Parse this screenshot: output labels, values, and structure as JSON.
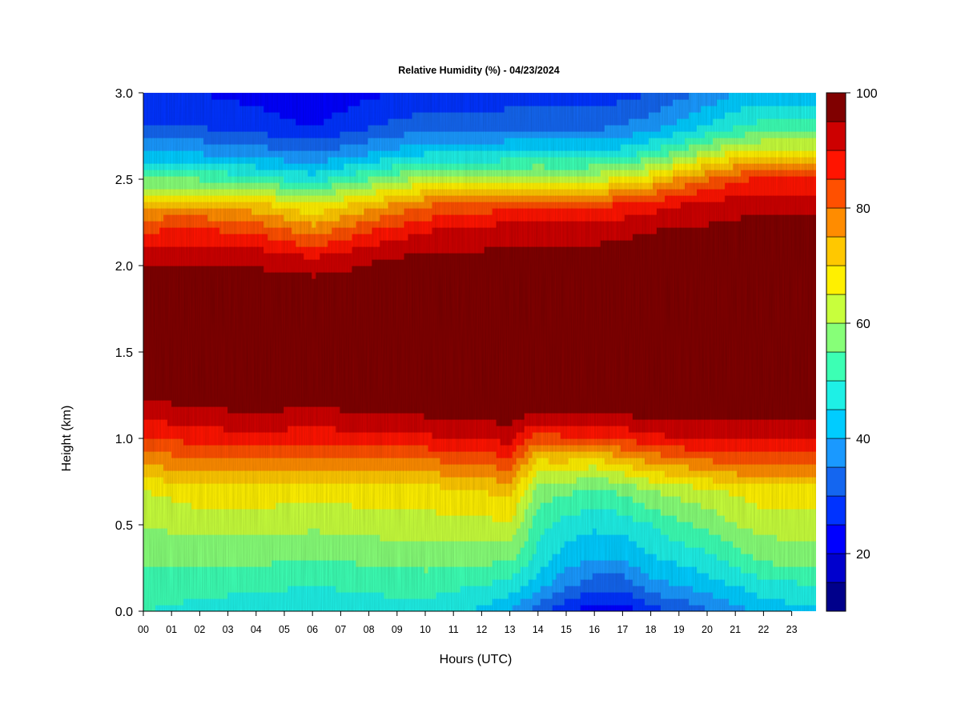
{
  "chart_data": {
    "type": "heatmap",
    "title": "Relative Humidity (%) - 04/23/2024",
    "xlabel": "Hours (UTC)",
    "ylabel": "Height (km)",
    "x_ticks": [
      "00",
      "01",
      "02",
      "03",
      "04",
      "05",
      "06",
      "07",
      "08",
      "09",
      "10",
      "11",
      "12",
      "13",
      "14",
      "15",
      "16",
      "17",
      "18",
      "19",
      "20",
      "21",
      "22",
      "23"
    ],
    "y_ticks": [
      "0.0",
      "0.5",
      "1.0",
      "1.5",
      "2.0",
      "2.5",
      "3.0"
    ],
    "xlim": [
      0,
      23.9
    ],
    "ylim": [
      0,
      3.0
    ],
    "colorbar": {
      "ticks": [
        "20",
        "40",
        "60",
        "80",
        "100"
      ],
      "range": [
        10,
        100
      ],
      "levels": [
        10,
        15,
        20,
        25,
        30,
        35,
        40,
        45,
        50,
        55,
        60,
        65,
        70,
        75,
        80,
        85,
        90,
        95,
        100
      ],
      "colors": [
        "#00008b",
        "#0000cd",
        "#0000ff",
        "#0033ff",
        "#1466f0",
        "#1a99ff",
        "#00ccff",
        "#1ef0e6",
        "#3cffb4",
        "#87ff78",
        "#c8ff3c",
        "#fff000",
        "#ffc800",
        "#ff8c00",
        "#ff5000",
        "#ff1400",
        "#cd0000",
        "#800000"
      ]
    },
    "profile_heights_km": [
      0.0,
      0.15,
      0.3,
      0.5,
      0.7,
      0.85,
      1.0,
      1.15,
      1.3,
      1.5,
      1.7,
      1.9,
      2.05,
      2.2,
      2.35,
      2.5,
      2.65,
      2.8,
      3.0
    ],
    "profiles": [
      {
        "hour": 0,
        "rh": [
          50,
          53,
          56,
          60,
          65,
          75,
          84,
          92,
          98,
          100,
          100,
          98,
          94,
          85,
          75,
          55,
          40,
          30,
          25
        ]
      },
      {
        "hour": 2,
        "rh": [
          48,
          52,
          56,
          62,
          68,
          78,
          87,
          94,
          99,
          100,
          100,
          98,
          94,
          86,
          75,
          55,
          40,
          30,
          25
        ]
      },
      {
        "hour": 4,
        "rh": [
          47,
          51,
          56,
          62,
          68,
          78,
          88,
          95,
          99,
          100,
          100,
          98,
          93,
          84,
          72,
          52,
          38,
          28,
          23
        ]
      },
      {
        "hour": 6,
        "rh": [
          47,
          50,
          55,
          61,
          67,
          77,
          87,
          94,
          99,
          100,
          100,
          97,
          90,
          78,
          66,
          48,
          35,
          25,
          20
        ]
      },
      {
        "hour": 8,
        "rh": [
          48,
          51,
          56,
          62,
          68,
          78,
          88,
          95,
          99,
          100,
          100,
          98,
          94,
          85,
          73,
          55,
          40,
          30,
          24
        ]
      },
      {
        "hour": 10,
        "rh": [
          48,
          52,
          57,
          63,
          68,
          78,
          89,
          96,
          99,
          100,
          100,
          99,
          96,
          90,
          80,
          62,
          45,
          33,
          26
        ]
      },
      {
        "hour": 12,
        "rh": [
          44,
          50,
          56,
          63,
          70,
          80,
          90,
          97,
          100,
          100,
          100,
          99,
          96,
          92,
          82,
          62,
          45,
          33,
          26
        ]
      },
      {
        "hour": 13,
        "rh": [
          40,
          48,
          56,
          65,
          72,
          82,
          92,
          98,
          100,
          100,
          100,
          99,
          97,
          93,
          84,
          63,
          46,
          34,
          27
        ]
      },
      {
        "hour": 14,
        "rh": [
          32,
          42,
          48,
          52,
          58,
          68,
          82,
          95,
          100,
          100,
          100,
          99,
          97,
          93,
          85,
          64,
          46,
          34,
          27
        ]
      },
      {
        "hour": 15,
        "rh": [
          26,
          36,
          42,
          48,
          56,
          68,
          84,
          96,
          100,
          100,
          100,
          99,
          97,
          93,
          84,
          63,
          46,
          34,
          27
        ]
      },
      {
        "hour": 16,
        "rh": [
          22,
          32,
          40,
          46,
          54,
          66,
          84,
          96,
          100,
          100,
          100,
          99,
          97,
          93,
          84,
          64,
          46,
          34,
          27
        ]
      },
      {
        "hour": 17,
        "rh": [
          22,
          32,
          40,
          47,
          56,
          70,
          86,
          96,
          100,
          100,
          100,
          99,
          97,
          94,
          86,
          66,
          48,
          36,
          28
        ]
      },
      {
        "hour": 18,
        "rh": [
          28,
          38,
          44,
          50,
          60,
          74,
          88,
          97,
          100,
          100,
          100,
          99,
          98,
          95,
          88,
          70,
          52,
          38,
          30
        ]
      },
      {
        "hour": 19,
        "rh": [
          30,
          40,
          46,
          54,
          62,
          76,
          90,
          97,
          100,
          100,
          100,
          100,
          98,
          96,
          90,
          76,
          56,
          42,
          33
        ]
      },
      {
        "hour": 20,
        "rh": [
          34,
          43,
          48,
          56,
          64,
          78,
          90,
          97,
          100,
          100,
          100,
          100,
          98,
          96,
          92,
          80,
          62,
          46,
          36
        ]
      },
      {
        "hour": 21,
        "rh": [
          38,
          45,
          52,
          60,
          66,
          80,
          90,
          97,
          100,
          100,
          100,
          100,
          99,
          97,
          93,
          84,
          66,
          50,
          40
        ]
      },
      {
        "hour": 22,
        "rh": [
          42,
          48,
          56,
          62,
          68,
          80,
          90,
          97,
          100,
          100,
          100,
          100,
          99,
          97,
          94,
          86,
          68,
          52,
          42
        ]
      },
      {
        "hour": 23.9,
        "rh": [
          44,
          50,
          57,
          63,
          68,
          80,
          90,
          97,
          100,
          100,
          100,
          100,
          99,
          97,
          94,
          86,
          68,
          52,
          42
        ]
      }
    ],
    "grid": false,
    "legend": "colorbar-right"
  }
}
